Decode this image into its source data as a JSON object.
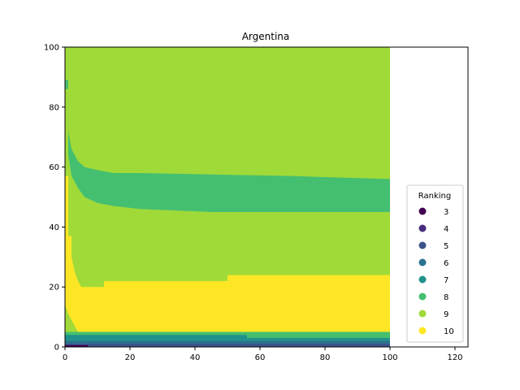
{
  "chart_data": {
    "type": "heatmap",
    "title": "Argentina",
    "xlabel": "",
    "ylabel": "",
    "xlim": [
      0,
      124
    ],
    "ylim": [
      0,
      100
    ],
    "x_data_range": [
      0,
      100
    ],
    "xticks": [
      0,
      20,
      40,
      60,
      80,
      100,
      120
    ],
    "yticks": [
      0,
      20,
      40,
      60,
      80,
      100
    ],
    "grid": false,
    "legend": {
      "title": "Ranking",
      "placement": "lower-right",
      "entries": [
        {
          "label": "3",
          "color": "#440154"
        },
        {
          "label": "4",
          "color": "#472d7b"
        },
        {
          "label": "5",
          "color": "#3b528b"
        },
        {
          "label": "6",
          "color": "#2c728e"
        },
        {
          "label": "7",
          "color": "#21918c"
        },
        {
          "label": "8",
          "color": "#44bf70"
        },
        {
          "label": "9",
          "color": "#a0da39"
        },
        {
          "label": "10",
          "color": "#fde725"
        }
      ]
    },
    "regions": [
      {
        "ranking": 9,
        "x": [
          0,
          100
        ],
        "y": [
          0,
          100
        ]
      },
      {
        "ranking": 10,
        "boundary": [
          [
            0,
            20
          ],
          [
            0,
            57
          ],
          [
            1,
            57
          ],
          [
            1,
            37
          ],
          [
            2,
            37
          ],
          [
            2,
            30
          ],
          [
            3,
            25
          ],
          [
            4,
            22
          ],
          [
            5,
            20
          ],
          [
            12,
            20
          ],
          [
            12,
            22
          ],
          [
            50,
            22
          ],
          [
            50,
            24
          ],
          [
            100,
            24
          ],
          [
            100,
            5
          ],
          [
            4,
            5
          ],
          [
            3,
            7
          ],
          [
            2,
            9
          ],
          [
            1,
            11
          ],
          [
            0,
            14
          ]
        ]
      },
      {
        "ranking": 8,
        "boundary": [
          [
            1,
            72
          ],
          [
            2,
            66
          ],
          [
            4,
            62
          ],
          [
            6,
            60
          ],
          [
            10,
            59
          ],
          [
            15,
            58
          ],
          [
            23,
            58
          ],
          [
            70,
            57
          ],
          [
            100,
            56
          ],
          [
            100,
            45
          ],
          [
            45,
            45
          ],
          [
            23,
            46
          ],
          [
            15,
            47
          ],
          [
            10,
            48
          ],
          [
            6,
            50
          ],
          [
            4,
            53
          ],
          [
            2,
            57
          ],
          [
            1,
            64
          ]
        ]
      },
      {
        "ranking": 8,
        "boundary": [
          [
            0,
            86
          ],
          [
            1,
            86
          ],
          [
            1,
            89
          ],
          [
            0,
            89
          ]
        ]
      },
      {
        "ranking": 8,
        "boundary": [
          [
            0,
            3
          ],
          [
            100,
            3
          ],
          [
            100,
            5
          ],
          [
            0,
            5
          ]
        ]
      },
      {
        "ranking": 7,
        "boundary": [
          [
            0,
            1
          ],
          [
            100,
            1
          ],
          [
            100,
            3
          ],
          [
            56,
            3
          ],
          [
            56,
            4
          ],
          [
            0,
            4
          ]
        ]
      },
      {
        "ranking": 6,
        "boundary": [
          [
            0,
            0
          ],
          [
            100,
            0
          ],
          [
            100,
            2
          ],
          [
            0,
            2
          ]
        ]
      },
      {
        "ranking": 5,
        "boundary": [
          [
            0,
            0
          ],
          [
            100,
            0
          ],
          [
            100,
            1
          ],
          [
            0,
            1
          ]
        ]
      },
      {
        "ranking": 3,
        "boundary": [
          [
            0,
            0
          ],
          [
            7,
            0
          ],
          [
            7,
            0.6
          ],
          [
            0,
            0.6
          ]
        ]
      }
    ]
  }
}
